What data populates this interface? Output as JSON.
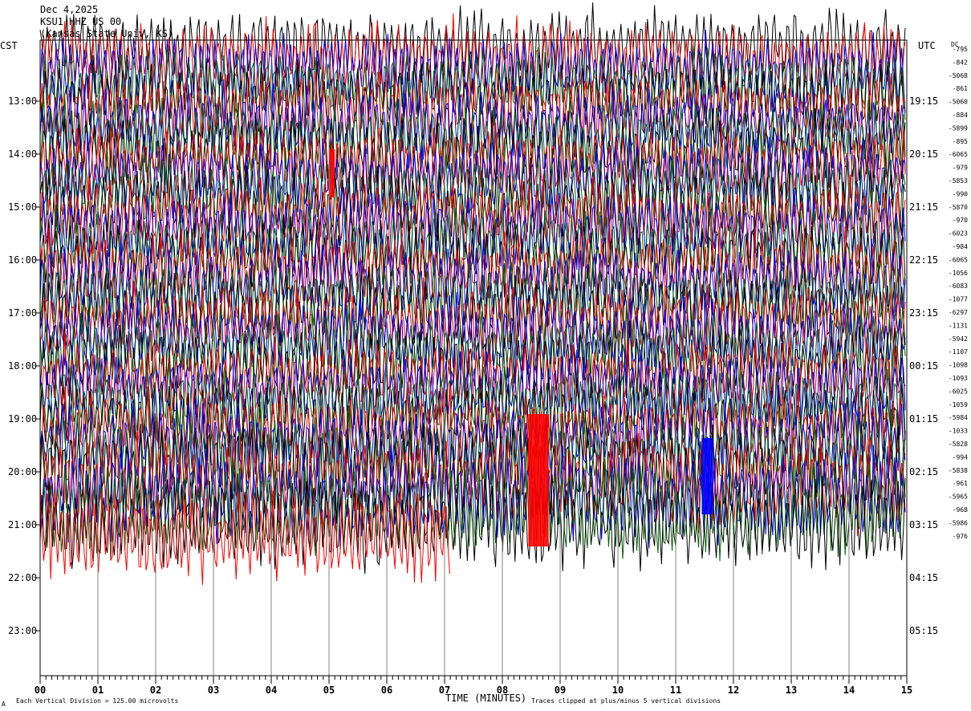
{
  "header": {
    "date": "Dec 4,2025",
    "station": "KSU1 HHZ US 00",
    "institution": "(Kansas State Univ, KS)"
  },
  "left_axis_label": "CST",
  "right_axis_label": "UTC",
  "dc_label": "DC",
  "footer": {
    "scale_note": "Each Vertical Division = 125.00 microvolts",
    "clip_note": "Traces clipped at plus/minus 5 vertical divisions",
    "corner_mark": "A"
  },
  "colors": {
    "black": "#000000",
    "red": "#ff0000",
    "blue": "#0000ff",
    "green": "#006400",
    "grid": "#808080"
  },
  "chart_data": {
    "type": "line",
    "title": "KSU1 HHZ US 00",
    "xlabel": "TIME (MINUTES)",
    "ylabel": "",
    "xlim": [
      0,
      15
    ],
    "x_ticks": [
      "00",
      "01",
      "02",
      "03",
      "04",
      "05",
      "06",
      "07",
      "08",
      "09",
      "10",
      "11",
      "12",
      "13",
      "14",
      "15"
    ],
    "left_hour_labels": [
      "13:00",
      "14:00",
      "15:00",
      "16:00",
      "17:00",
      "18:00",
      "19:00",
      "20:00",
      "21:00",
      "22:00",
      "23:00"
    ],
    "right_hour_labels": [
      "19:15",
      "20:15",
      "21:15",
      "22:15",
      "23:15",
      "00:15",
      "01:15",
      "02:15",
      "03:15",
      "04:15",
      "05:15"
    ],
    "dc_offsets": [
      "-795",
      "-842",
      "-5068",
      "-861",
      "-5060",
      "-884",
      "-5899",
      "-895",
      "-6065",
      "-979",
      "-5853",
      "-990",
      "-5870",
      "-970",
      "-6023",
      "-984",
      "-6065",
      "-1056",
      "-6083",
      "-1077",
      "-6297",
      "-1131",
      "-5942",
      "-1107",
      "-1098",
      "-1093",
      "-6025",
      "-1059",
      "-5984",
      "-1033",
      "-5828",
      "-994",
      "-5838",
      "-961",
      "-5965",
      "-968",
      "-5986",
      "-976"
    ],
    "trace_colors": [
      "black",
      "red",
      "blue",
      "green"
    ],
    "trace_interval_minutes": 15,
    "trace_count": 38,
    "last_trace_end_minute": 7.1,
    "clip_divisions": 5,
    "microvolts_per_division": 125.0,
    "events": [
      {
        "minute_start": 8.45,
        "minute_end": 8.8,
        "hour_label": "19:00",
        "color": "red",
        "description": "clipped burst"
      },
      {
        "minute_start": 11.45,
        "minute_end": 11.65,
        "hour_label": "19:00",
        "color": "blue",
        "description": "clipped burst"
      },
      {
        "minute_start": 5.0,
        "minute_end": 5.1,
        "hour_label": "14:00",
        "color": "red",
        "description": "clipped burst"
      }
    ]
  }
}
